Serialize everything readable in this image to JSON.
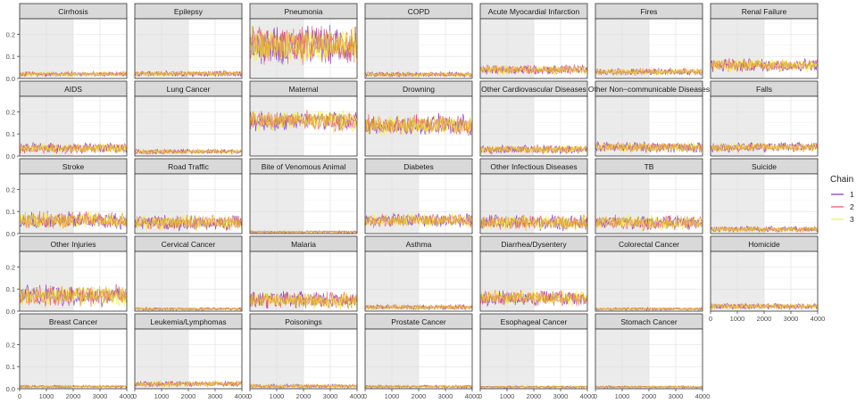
{
  "chart_data": {
    "type": "line",
    "title": "",
    "xlabel": "",
    "ylabel": "",
    "xlim": [
      0,
      4000
    ],
    "ylim": [
      0,
      0.27
    ],
    "x_ticks": [
      0,
      1000,
      2000,
      3000,
      4000
    ],
    "x_tick_labels": [
      "0",
      "1000",
      "2000",
      "3000",
      "4000"
    ],
    "y_ticks": [
      0.0,
      0.1,
      0.2
    ],
    "y_tick_labels": [
      "0.0",
      "0.1",
      "0.2"
    ],
    "warmup_end": 2000,
    "grid": true,
    "legend": {
      "title": "Chain",
      "position": "right",
      "entries": [
        {
          "label": "1",
          "color": "#7b2fbf"
        },
        {
          "label": "2",
          "color": "#ef4f6b"
        },
        {
          "label": "3",
          "color": "#f2f23a"
        }
      ]
    },
    "overlap_color": "#e0a838",
    "panels": [
      {
        "name": "Cirrhosis",
        "center": 0.02,
        "spread": 0.025
      },
      {
        "name": "Epilepsy",
        "center": 0.022,
        "spread": 0.028
      },
      {
        "name": "Pneumonia",
        "center": 0.15,
        "spread": 0.2
      },
      {
        "name": "COPD",
        "center": 0.018,
        "spread": 0.025
      },
      {
        "name": "Acute Myocardial Infarction",
        "center": 0.04,
        "spread": 0.05
      },
      {
        "name": "Fires",
        "center": 0.03,
        "spread": 0.035
      },
      {
        "name": "Renal Failure",
        "center": 0.06,
        "spread": 0.07
      },
      {
        "name": "AIDS",
        "center": 0.035,
        "spread": 0.055
      },
      {
        "name": "Lung Cancer",
        "center": 0.02,
        "spread": 0.025
      },
      {
        "name": "Maternal",
        "center": 0.16,
        "spread": 0.11
      },
      {
        "name": "Drowning",
        "center": 0.14,
        "spread": 0.11
      },
      {
        "name": "Other Cardiovascular Diseases",
        "center": 0.03,
        "spread": 0.045
      },
      {
        "name": "Other Non−communicable Diseases",
        "center": 0.04,
        "spread": 0.055
      },
      {
        "name": "Falls",
        "center": 0.04,
        "spread": 0.05
      },
      {
        "name": "Stroke",
        "center": 0.06,
        "spread": 0.09
      },
      {
        "name": "Road Traffic",
        "center": 0.05,
        "spread": 0.08
      },
      {
        "name": "Bite of Venomous Animal",
        "center": 0.008,
        "spread": 0.012
      },
      {
        "name": "Diabetes",
        "center": 0.06,
        "spread": 0.07
      },
      {
        "name": "Other Infectious Diseases",
        "center": 0.05,
        "spread": 0.08
      },
      {
        "name": "TB",
        "center": 0.05,
        "spread": 0.08
      },
      {
        "name": "Suicide",
        "center": 0.02,
        "spread": 0.03
      },
      {
        "name": "Other Injuries",
        "center": 0.07,
        "spread": 0.11
      },
      {
        "name": "Cervical Cancer",
        "center": 0.01,
        "spread": 0.015
      },
      {
        "name": "Malaria",
        "center": 0.05,
        "spread": 0.09
      },
      {
        "name": "Asthma",
        "center": 0.018,
        "spread": 0.025
      },
      {
        "name": "Diarrhea/Dysentery",
        "center": 0.06,
        "spread": 0.08
      },
      {
        "name": "Colorectal Cancer",
        "center": 0.01,
        "spread": 0.015
      },
      {
        "name": "Homicide",
        "center": 0.022,
        "spread": 0.03
      },
      {
        "name": "Breast Cancer",
        "center": 0.01,
        "spread": 0.014
      },
      {
        "name": "Leukemia/Lymphomas",
        "center": 0.022,
        "spread": 0.03
      },
      {
        "name": "Poisonings",
        "center": 0.012,
        "spread": 0.02
      },
      {
        "name": "Prostate Cancer",
        "center": 0.01,
        "spread": 0.015
      },
      {
        "name": "Esophageal Cancer",
        "center": 0.008,
        "spread": 0.012
      },
      {
        "name": "Stomach Cancer",
        "center": 0.008,
        "spread": 0.012
      }
    ]
  }
}
